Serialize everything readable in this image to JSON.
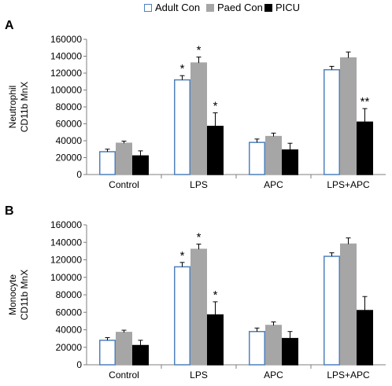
{
  "legend": [
    {
      "label": "Adult Con",
      "fill": "#ffffff",
      "stroke": "#4f81bd"
    },
    {
      "label": "Paed Con",
      "fill": "#a6a6a6",
      "stroke": "#a6a6a6"
    },
    {
      "label": "PICU",
      "fill": "#000000",
      "stroke": "#000000"
    }
  ],
  "chart_data": [
    {
      "type": "bar",
      "panel_label": "A",
      "ylabel_lines": [
        "Neutrophil",
        "CD11b MnX"
      ],
      "categories": [
        "Control",
        "LPS",
        "APC",
        "LPS+APC"
      ],
      "ylim": [
        0,
        160000
      ],
      "yticks": [
        0,
        20000,
        40000,
        60000,
        80000,
        100000,
        120000,
        140000,
        160000
      ],
      "ytick_labels": [
        "0",
        "20000",
        "40000",
        "60000",
        "80000",
        "100000",
        "120000",
        "140000",
        "160000"
      ],
      "grid": false,
      "series": [
        {
          "name": "Adult Con",
          "values": [
            27000,
            112000,
            38000,
            124000
          ],
          "errors": [
            3000,
            5000,
            4000,
            4000
          ],
          "annotations": [
            "",
            "*",
            "",
            ""
          ]
        },
        {
          "name": "Paed Con",
          "values": [
            37000,
            132000,
            45000,
            138000
          ],
          "errors": [
            2500,
            7000,
            4000,
            7000
          ],
          "annotations": [
            "",
            "*",
            "",
            ""
          ]
        },
        {
          "name": "PICU",
          "values": [
            22000,
            57000,
            29000,
            62000
          ],
          "errors": [
            6000,
            16000,
            8000,
            16000
          ],
          "annotations": [
            "",
            "*",
            "",
            "**"
          ]
        }
      ]
    },
    {
      "type": "bar",
      "panel_label": "B",
      "ylabel_lines": [
        "Monocyte",
        "CD11b MnX"
      ],
      "categories": [
        "Control",
        "LPS",
        "APC",
        "LPS+APC"
      ],
      "ylim": [
        0,
        160000
      ],
      "yticks": [
        0,
        20000,
        40000,
        60000,
        80000,
        100000,
        120000,
        140000,
        160000
      ],
      "ytick_labels": [
        "0",
        "20000",
        "40000",
        "60000",
        "80000",
        "100000",
        "120000",
        "140000",
        "160000"
      ],
      "grid": false,
      "series": [
        {
          "name": "Adult Con",
          "values": [
            28000,
            112000,
            38000,
            124000
          ],
          "errors": [
            3000,
            5000,
            4000,
            4000
          ],
          "annotations": [
            "",
            "*",
            "",
            ""
          ]
        },
        {
          "name": "Paed Con",
          "values": [
            37000,
            132000,
            45000,
            138000
          ],
          "errors": [
            2500,
            6000,
            4000,
            7000
          ],
          "annotations": [
            "",
            "*",
            "",
            ""
          ]
        },
        {
          "name": "PICU",
          "values": [
            22000,
            57000,
            30000,
            62000
          ],
          "errors": [
            6000,
            15000,
            8000,
            16000
          ],
          "annotations": [
            "",
            "*",
            "",
            ""
          ]
        }
      ]
    }
  ]
}
